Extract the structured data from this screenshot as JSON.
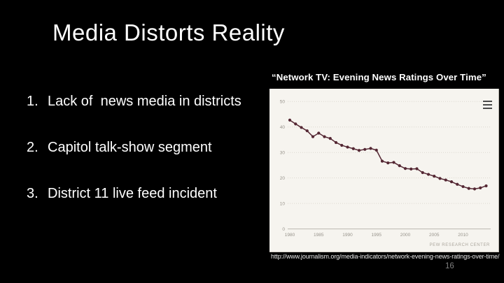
{
  "slide": {
    "title": "Media Distorts Reality",
    "page_number": "16",
    "source_url": "http://www.journalism.org/media-indicators/network-evening-news-ratings-over-time/"
  },
  "list": {
    "items": [
      {
        "number": "1.",
        "text": "Lack of  news media in districts"
      },
      {
        "number": "2.",
        "text": "Capitol talk-show segment"
      },
      {
        "number": "3.",
        "text": "District 11 live feed incident"
      }
    ]
  },
  "chart": {
    "title": "“Network TV: Evening News Ratings Over Time”",
    "menu_icon": "hamburger-menu-icon",
    "credit": "PEW RESEARCH CENTER"
  },
  "chart_data": {
    "type": "line",
    "title": "Network TV: Evening News Ratings Over Time",
    "x": [
      1980,
      1981,
      1982,
      1983,
      1984,
      1985,
      1986,
      1987,
      1988,
      1989,
      1990,
      1991,
      1992,
      1993,
      1994,
      1995,
      1996,
      1997,
      1998,
      1999,
      2000,
      2001,
      2002,
      2003,
      2004,
      2005,
      2006,
      2007,
      2008,
      2009,
      2010,
      2011,
      2012,
      2013,
      2014
    ],
    "values": [
      42.7,
      41.2,
      39.8,
      38.5,
      36.2,
      37.6,
      36.2,
      35.5,
      33.9,
      32.8,
      32.1,
      31.5,
      30.8,
      31.2,
      31.6,
      30.9,
      26.6,
      25.9,
      26.1,
      24.8,
      23.7,
      23.5,
      23.6,
      22.1,
      21.4,
      20.7,
      19.8,
      19.2,
      18.5,
      17.5,
      16.6,
      15.9,
      15.7,
      16.1,
      16.9
    ],
    "xlabel": "",
    "ylabel": "",
    "ylim": [
      0,
      50
    ],
    "yticks": [
      0,
      10,
      20,
      30,
      40,
      50
    ],
    "xticks": [
      1980,
      1985,
      1990,
      1995,
      2000,
      2005,
      2010
    ],
    "grid": "horizontal-dotted",
    "legend": "none",
    "source": "PEW RESEARCH CENTER",
    "line_color": "#542733",
    "background": "#f6f4ef"
  },
  "colors": {
    "slide_background": "#000000",
    "text": "#ffffff",
    "chart_background": "#f6f4ef",
    "line": "#542733",
    "axis_label": "#97938b",
    "gridline": "#dcd8d0",
    "page_number": "#7f7f7f"
  }
}
